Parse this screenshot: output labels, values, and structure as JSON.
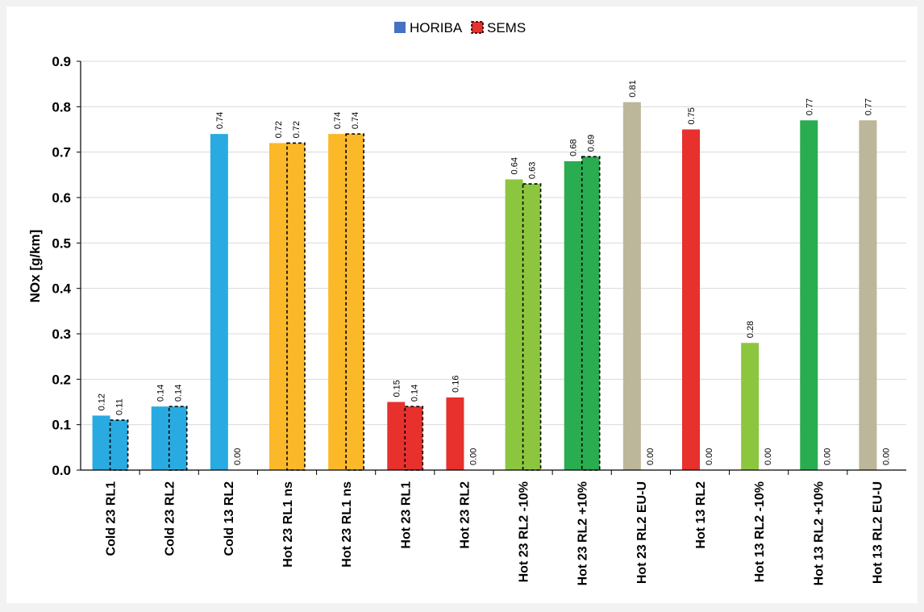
{
  "chart_data": {
    "type": "bar",
    "title": "",
    "xlabel": "",
    "ylabel": "NOx [g/km]",
    "ylim": [
      0,
      0.9
    ],
    "yticks": [
      "0.0",
      "0.1",
      "0.2",
      "0.3",
      "0.4",
      "0.5",
      "0.6",
      "0.7",
      "0.8",
      "0.9"
    ],
    "grid": true,
    "legend_position": "top-center",
    "categories": [
      "Cold 23 RL1",
      "Cold 23 RL2",
      "Cold 13 RL2",
      "Hot 23 RL1 ns",
      "Hot 23 RL1 ns",
      "Hot 23 RL1",
      "Hot 23 RL2",
      "Hot 23 RL2 -10%",
      "Hot 23 RL2 +10%",
      "Hot 23 RL2 EU-U",
      "Hot 13 RL2",
      "Hot 13 RL2 -10%",
      "Hot 13 RL2 +10%",
      "Hot 13 RL2 EU-U"
    ],
    "bar_colors": [
      "#29abe2",
      "#29abe2",
      "#29abe2",
      "#fbb829",
      "#fbb829",
      "#e8302d",
      "#e8302d",
      "#8cc63f",
      "#2aac50",
      "#bcb79a",
      "#e8302d",
      "#8cc63f",
      "#2aac50",
      "#bcb79a"
    ],
    "series": [
      {
        "name": "HORIBA",
        "legend_color": "#4472c4",
        "values": [
          0.12,
          0.14,
          0.74,
          0.72,
          0.74,
          0.15,
          0.16,
          0.64,
          0.68,
          0.81,
          0.75,
          0.28,
          0.77,
          0.77
        ],
        "labels": [
          "0.12",
          "0.14",
          "0.74",
          "0.72",
          "0.74",
          "0.15",
          "0.16",
          "0.64",
          "0.68",
          "0.81",
          "0.75",
          "0.28",
          "0.77",
          "0.77"
        ]
      },
      {
        "name": "SEMS",
        "legend_color": "#e8302d",
        "style": "dashed-outline",
        "values": [
          0.11,
          0.14,
          0.0,
          0.72,
          0.74,
          0.14,
          0.0,
          0.63,
          0.69,
          0.0,
          0.0,
          0.0,
          0.0,
          0.0
        ],
        "labels": [
          "0.11",
          "0.14",
          "0.00",
          "0.72",
          "0.74",
          "0.14",
          "0.00",
          "0.63",
          "0.69",
          "0.00",
          "0.00",
          "0.00",
          "0.00",
          "0.00"
        ]
      }
    ]
  }
}
